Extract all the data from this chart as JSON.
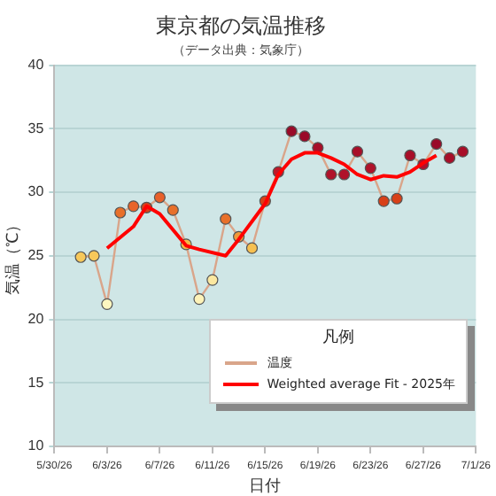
{
  "chart_data": {
    "type": "line",
    "title": "東京都の気温推移",
    "subtitle": "（データ出典：気象庁）",
    "xlabel": "日付",
    "ylabel": "気温（℃）",
    "legend_title": "凡例",
    "xlim": [
      "--05-30",
      "--07-01"
    ],
    "xticks": [
      {
        "value": "--05-30",
        "label": "5/30/26"
      },
      {
        "value": "--06-03",
        "label": "6/3/26"
      },
      {
        "value": "--06-07",
        "label": "6/7/26"
      },
      {
        "value": "--06-11",
        "label": "6/11/26"
      },
      {
        "value": "--06-15",
        "label": "6/15/26"
      },
      {
        "value": "--06-19",
        "label": "6/19/26"
      },
      {
        "value": "--06-23",
        "label": "6/23/26"
      },
      {
        "value": "--06-27",
        "label": "6/27/26"
      },
      {
        "value": "--07-01",
        "label": "7/1/26"
      }
    ],
    "ylim": [
      10,
      40
    ],
    "yticks": [
      10,
      15,
      20,
      25,
      30,
      35,
      40
    ],
    "grid": "y",
    "legend": "bottom right",
    "marker": "circle",
    "series": [
      {
        "name": "温度",
        "color": "#d9a58a",
        "x": [
          "--06-01",
          "--06-02",
          "--06-03",
          "--06-04",
          "--06-05",
          "--06-06",
          "--06-07",
          "--06-08",
          "--06-09",
          "--06-10",
          "--06-11",
          "--06-12",
          "--06-13",
          "--06-14",
          "--06-15",
          "--06-16",
          "--06-17",
          "--06-18",
          "--06-19",
          "--06-20",
          "--06-21",
          "--06-22",
          "--06-23",
          "--06-24",
          "--06-25",
          "--06-26",
          "--06-27",
          "--06-28",
          "--06-29",
          "--06-30"
        ],
        "values": [
          24.9,
          25.0,
          21.2,
          28.4,
          28.9,
          28.8,
          29.6,
          28.6,
          25.9,
          21.6,
          23.1,
          27.9,
          26.5,
          25.6,
          29.3,
          31.6,
          34.8,
          34.4,
          33.5,
          31.4,
          31.4,
          33.2,
          31.9,
          29.3,
          29.5,
          32.9,
          32.2,
          33.8,
          32.7,
          33.2
        ],
        "colors": [
          "#f7c85a",
          "#f7c85a",
          "#fdf7c0",
          "#e8702a",
          "#e8642a",
          "#d84018",
          "#e8602a",
          "#e8702a",
          "#f5b848",
          "#fdf2b8",
          "#fbe8a0",
          "#e8702a",
          "#f0983a",
          "#f7c050",
          "#d84018",
          "#c01828",
          "#9a0a28",
          "#9a0a28",
          "#a80e28",
          "#b0122a",
          "#b0122a",
          "#a80e28",
          "#b0122a",
          "#d84018",
          "#d84018",
          "#a80e28",
          "#b0122a",
          "#9a0a28",
          "#a80e28",
          "#a80e28"
        ]
      },
      {
        "name": "Weighted average Fit - 2025年",
        "color": "#ff0000",
        "marker": "none",
        "x": [
          "--06-03",
          "--06-05",
          "--06-06",
          "--06-07",
          "--06-09",
          "--06-10",
          "--06-12",
          "--06-13",
          "--06-15",
          "--06-16",
          "--06-17",
          "--06-18",
          "--06-19",
          "--06-20",
          "--06-21",
          "--06-22",
          "--06-23",
          "--06-24",
          "--06-25",
          "--06-26",
          "--06-27",
          "--06-28"
        ],
        "values": [
          25.6,
          27.3,
          28.9,
          28.3,
          25.8,
          25.5,
          25.0,
          26.3,
          29.1,
          31.4,
          32.6,
          33.1,
          33.1,
          32.7,
          32.2,
          31.4,
          31.0,
          31.3,
          31.2,
          31.6,
          32.3,
          32.9
        ]
      }
    ]
  }
}
